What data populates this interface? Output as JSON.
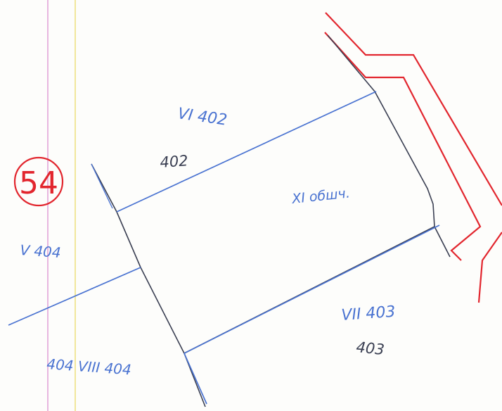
{
  "sheet_number": "54",
  "labels": {
    "vi_402": "VI 402",
    "parcel_402": "402",
    "xi_obshch": "XI обшч.",
    "v_404": "V 404",
    "vii_403": "VII 403",
    "parcel_403": "403",
    "viii_404": "404 VIII 404"
  },
  "colors": {
    "pencil": "#3a3f52",
    "blue": "#4a73d1",
    "red": "#e2262e",
    "margin_pink": "#e7b7e0",
    "margin_yellow": "#f1e79b"
  }
}
